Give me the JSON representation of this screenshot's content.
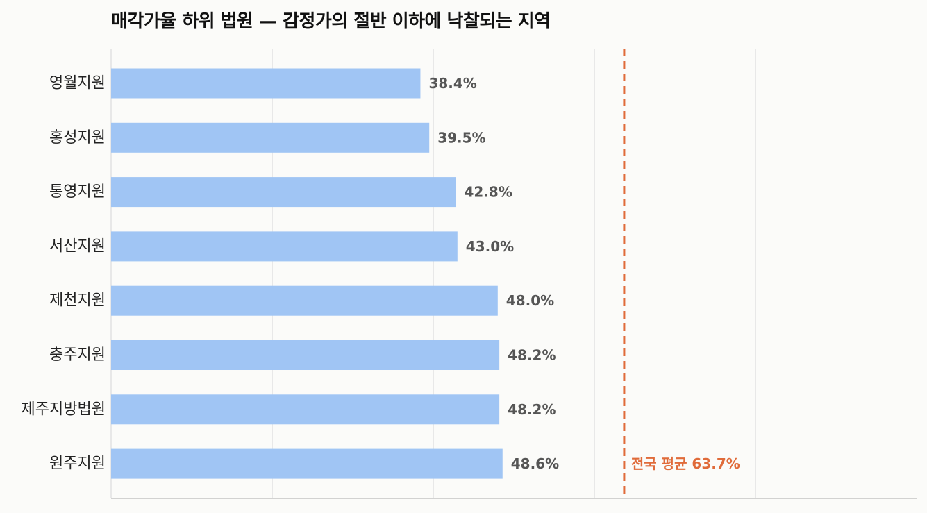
{
  "chart_data": {
    "type": "bar",
    "orientation": "horizontal",
    "title": "매각가율 하위 법원 — 감정가의 절반 이하에 낙찰되는 지역",
    "categories": [
      "영월지원",
      "홍성지원",
      "통영지원",
      "서산지원",
      "제천지원",
      "충주지원",
      "제주지방법원",
      "원주지원"
    ],
    "values": [
      38.4,
      39.5,
      42.8,
      43.0,
      48.0,
      48.2,
      48.2,
      48.6
    ],
    "value_labels": [
      "38.4%",
      "39.5%",
      "42.8%",
      "43.0%",
      "48.0%",
      "48.2%",
      "48.2%",
      "48.6%"
    ],
    "xlim": [
      0,
      100
    ],
    "grid": true,
    "reference_line": {
      "value": 63.7,
      "label": "전국 평균 63.7%",
      "style": "dashed",
      "color": "#e06b3a"
    },
    "bar_color": "#a0c5f4",
    "label_color": "#555555"
  }
}
